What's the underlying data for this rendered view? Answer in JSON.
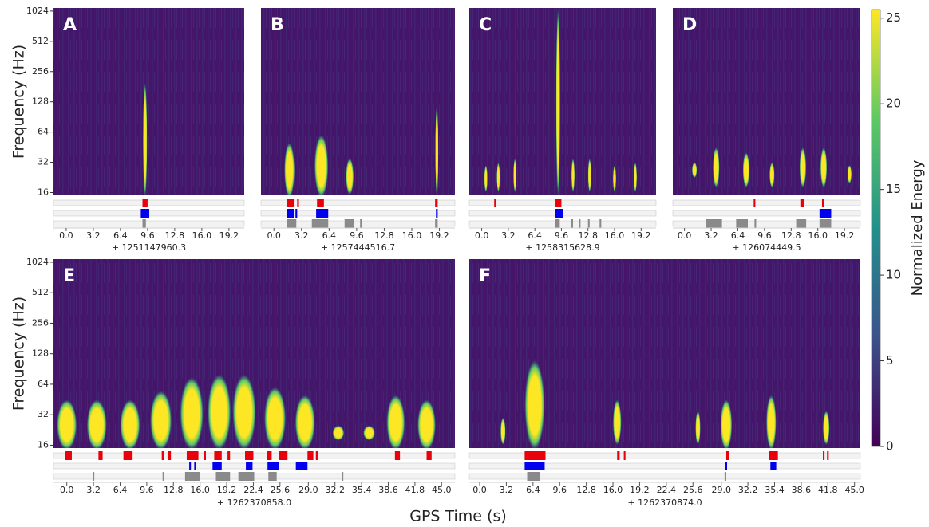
{
  "figure": {
    "xlabel": "GPS Time (s)",
    "colorbar": {
      "label": "Normalized Energy",
      "lim": [
        0,
        25.5
      ],
      "ticks": [
        0,
        5,
        10,
        15,
        20,
        25
      ]
    }
  },
  "chart_data": [
    {
      "type": "spectrogram",
      "letter": "A",
      "ylabel": "Frequency (Hz)",
      "offset": "+ 1251147960.3",
      "log_y": true,
      "xlim": [
        -1.5,
        21
      ],
      "ylim": [
        15,
        1100
      ],
      "xticks": [
        {
          "value": 0,
          "label": "0.0"
        },
        3.2,
        6.4,
        9.6,
        12.8,
        {
          "value": 16,
          "label": "16.0"
        },
        19.2
      ],
      "yticks": [
        16,
        32,
        64,
        128,
        256,
        512,
        1024
      ],
      "flag_colors": {
        "red": "#e8000b",
        "blue": "#0000ee",
        "gray": "#8a8a8a"
      },
      "events": [
        {
          "time": 9.3,
          "freq_low": 16,
          "freq_high": 200,
          "width": 0.5
        }
      ],
      "flags": {
        "red": [
          [
            9.0,
            9.6
          ]
        ],
        "blue": [
          [
            8.8,
            9.8
          ]
        ],
        "gray": [
          [
            9.0,
            9.4
          ]
        ]
      }
    },
    {
      "type": "spectrogram",
      "letter": "B",
      "offset": "+ 1257444516.7",
      "log_y": true,
      "xlim": [
        -1.5,
        21
      ],
      "ylim": [
        15,
        1100
      ],
      "xticks": [
        {
          "value": 0,
          "label": "0.0"
        },
        3.2,
        6.4,
        9.6,
        12.8,
        {
          "value": 16,
          "label": "16.0"
        },
        19.2
      ],
      "flag_colors": {
        "red": "#e8000b",
        "blue": "#0000ee",
        "gray": "#8a8a8a"
      },
      "events": [
        {
          "time": 1.8,
          "freq_low": 16,
          "freq_high": 50,
          "width": 1.2
        },
        {
          "time": 5.5,
          "freq_low": 16,
          "freq_high": 60,
          "width": 1.6
        },
        {
          "time": 8.8,
          "freq_low": 17,
          "freq_high": 35,
          "width": 0.9
        },
        {
          "time": 18.9,
          "freq_low": 16,
          "freq_high": 120,
          "width": 0.3
        }
      ],
      "flags": {
        "red": [
          [
            1.5,
            2.3
          ],
          [
            2.7,
            2.9
          ],
          [
            5.0,
            5.8
          ],
          [
            18.7,
            19.0
          ]
        ],
        "blue": [
          [
            1.5,
            2.3
          ],
          [
            2.5,
            2.7
          ],
          [
            4.9,
            6.3
          ],
          [
            18.8,
            19.0
          ]
        ],
        "gray": [
          [
            1.5,
            2.6
          ],
          [
            4.4,
            6.3
          ],
          [
            8.2,
            9.3
          ],
          [
            10.0,
            10.2
          ],
          [
            18.7,
            19.0
          ]
        ]
      }
    },
    {
      "type": "spectrogram",
      "letter": "C",
      "offset": "+ 1258315628.9",
      "log_y": true,
      "xlim": [
        -1.5,
        21
      ],
      "ylim": [
        15,
        1100
      ],
      "xticks": [
        {
          "value": 0,
          "label": "0.0"
        },
        3.2,
        6.4,
        9.6,
        12.8,
        {
          "value": 16,
          "label": "16.0"
        },
        19.2
      ],
      "flag_colors": {
        "red": "#e8000b",
        "blue": "#0000ee",
        "gray": "#8a8a8a"
      },
      "events": [
        {
          "time": 9.2,
          "freq_low": 16,
          "freq_high": 1100,
          "width": 0.5
        },
        {
          "time": 0.5,
          "freq_low": 18,
          "freq_high": 30,
          "width": 0.3
        },
        {
          "time": 2,
          "freq_low": 18,
          "freq_high": 32,
          "width": 0.3
        },
        {
          "time": 4,
          "freq_low": 18,
          "freq_high": 35,
          "width": 0.3
        },
        {
          "time": 11,
          "freq_low": 18,
          "freq_high": 35,
          "width": 0.3
        },
        {
          "time": 13,
          "freq_low": 18,
          "freq_high": 35,
          "width": 0.3
        },
        {
          "time": 16,
          "freq_low": 18,
          "freq_high": 30,
          "width": 0.3
        },
        {
          "time": 18.5,
          "freq_low": 18,
          "freq_high": 32,
          "width": 0.3
        }
      ],
      "flags": {
        "red": [
          [
            1.5,
            1.7
          ],
          [
            8.8,
            9.6
          ]
        ],
        "blue": [
          [
            8.8,
            9.8
          ]
        ],
        "gray": [
          [
            8.8,
            9.4
          ],
          [
            10.8,
            11.0
          ],
          [
            11.7,
            11.9
          ],
          [
            12.8,
            13.0
          ],
          [
            14.2,
            14.4
          ]
        ]
      }
    },
    {
      "type": "spectrogram",
      "letter": "D",
      "offset": "+ 126074449.5",
      "log_y": true,
      "xlim": [
        -1.4,
        21.1
      ],
      "ylim": [
        15,
        1100
      ],
      "xticks": [
        {
          "value": 0,
          "label": "0.0"
        },
        3.2,
        6.4,
        9.6,
        12.8,
        {
          "value": 16,
          "label": "16.0"
        },
        19.2
      ],
      "flag_colors": {
        "red": "#e8000b",
        "blue": "#0000ee",
        "gray": "#8a8a8a"
      },
      "events": [
        {
          "time": 1.2,
          "freq_low": 25,
          "freq_high": 32,
          "width": 0.6
        },
        {
          "time": 3.8,
          "freq_low": 20,
          "freq_high": 45,
          "width": 0.8
        },
        {
          "time": 7.4,
          "freq_low": 20,
          "freq_high": 40,
          "width": 0.8
        },
        {
          "time": 10.5,
          "freq_low": 20,
          "freq_high": 32,
          "width": 0.6
        },
        {
          "time": 14.2,
          "freq_low": 20,
          "freq_high": 45,
          "width": 0.8
        },
        {
          "time": 16.7,
          "freq_low": 20,
          "freq_high": 45,
          "width": 0.8
        },
        {
          "time": 19.8,
          "freq_low": 22,
          "freq_high": 30,
          "width": 0.5
        }
      ],
      "flags": {
        "red": [
          [
            8.3,
            8.5
          ],
          [
            13.9,
            14.4
          ],
          [
            16.5,
            16.7
          ]
        ],
        "blue": [
          [
            16.2,
            17.6
          ]
        ],
        "gray": [
          [
            2.6,
            4.5
          ],
          [
            6.2,
            7.6
          ],
          [
            8.4,
            8.6
          ],
          [
            13.4,
            14.6
          ],
          [
            16.2,
            17.6
          ]
        ]
      }
    },
    {
      "type": "spectrogram",
      "letter": "E",
      "ylabel": "Frequency (Hz)",
      "offset": "+ 1262370858.0",
      "log_y": true,
      "xlim": [
        -1.6,
        46.6
      ],
      "ylim": [
        15,
        1100
      ],
      "xticks": [
        {
          "value": 0,
          "label": "0.0"
        },
        3.2,
        6.4,
        9.6,
        12.8,
        {
          "value": 16,
          "label": "16.0"
        },
        19.2,
        22.4,
        25.6,
        {
          "value": 29,
          "label": "29.0"
        },
        32.2,
        35.4,
        38.6,
        41.8,
        {
          "value": 45,
          "label": "45.0"
        }
      ],
      "yticks": [
        16,
        32,
        64,
        128,
        256,
        512,
        1024
      ],
      "flag_colors": {
        "red": "#e8000b",
        "blue": "#0000ee",
        "gray": "#8a8a8a"
      },
      "events": [
        {
          "time": 0,
          "freq_low": 16,
          "freq_high": 45,
          "width": 2.4
        },
        {
          "time": 3.6,
          "freq_low": 16,
          "freq_high": 45,
          "width": 2.4
        },
        {
          "time": 7.6,
          "freq_low": 16,
          "freq_high": 45,
          "width": 2.4
        },
        {
          "time": 11.3,
          "freq_low": 16,
          "freq_high": 55,
          "width": 2.6
        },
        {
          "time": 15,
          "freq_low": 16,
          "freq_high": 75,
          "width": 2.8
        },
        {
          "time": 18.3,
          "freq_low": 16,
          "freq_high": 80,
          "width": 2.8
        },
        {
          "time": 21.3,
          "freq_low": 16,
          "freq_high": 80,
          "width": 2.8
        },
        {
          "time": 25,
          "freq_low": 16,
          "freq_high": 60,
          "width": 2.6
        },
        {
          "time": 28.6,
          "freq_low": 16,
          "freq_high": 50,
          "width": 2.4
        },
        {
          "time": 32.6,
          "freq_low": 20,
          "freq_high": 25,
          "width": 1.4
        },
        {
          "time": 36.3,
          "freq_low": 20,
          "freq_high": 25,
          "width": 1.4
        },
        {
          "time": 39.5,
          "freq_low": 16,
          "freq_high": 50,
          "width": 2.2
        },
        {
          "time": 43.2,
          "freq_low": 16,
          "freq_high": 45,
          "width": 2.2
        }
      ],
      "flags": {
        "red": [
          [
            -0.2,
            0.6
          ],
          [
            3.8,
            4.3
          ],
          [
            6.8,
            7.9
          ],
          [
            11.4,
            11.7
          ],
          [
            12.1,
            12.5
          ],
          [
            14.4,
            15.8
          ],
          [
            16.5,
            16.7
          ],
          [
            17.7,
            18.6
          ],
          [
            19.3,
            19.6
          ],
          [
            21.4,
            22.4
          ],
          [
            24.0,
            24.6
          ],
          [
            25.5,
            26.5
          ],
          [
            28.9,
            29.6
          ],
          [
            29.9,
            30.2
          ],
          [
            39.4,
            40.0
          ],
          [
            43.2,
            43.8
          ]
        ],
        "blue": [
          [
            14.7,
            14.9
          ],
          [
            15.3,
            15.5
          ],
          [
            17.5,
            18.6
          ],
          [
            21.5,
            22.3
          ],
          [
            24.1,
            25.5
          ],
          [
            27.5,
            28.9
          ]
        ],
        "gray": [
          [
            3.1,
            3.3
          ],
          [
            11.5,
            11.7
          ],
          [
            14.2,
            14.5
          ],
          [
            14.6,
            16.0
          ],
          [
            17.9,
            19.6
          ],
          [
            20.6,
            22.5
          ],
          [
            24.2,
            25.2
          ],
          [
            33.0,
            33.2
          ]
        ]
      }
    },
    {
      "type": "spectrogram",
      "letter": "F",
      "offset": "+ 1262370874.0",
      "log_y": true,
      "xlim": [
        -1.25,
        45.7
      ],
      "ylim": [
        15,
        1100
      ],
      "xticks": [
        {
          "value": 0,
          "label": "0.0"
        },
        3.2,
        6.4,
        9.6,
        12.8,
        {
          "value": 16,
          "label": "16.0"
        },
        19.2,
        22.4,
        25.6,
        {
          "value": 29,
          "label": "29.0"
        },
        32.2,
        35.4,
        38.6,
        41.8,
        {
          "value": 45,
          "label": "45.0"
        }
      ],
      "flag_colors": {
        "red": "#e8000b",
        "blue": "#0000ee",
        "gray": "#8a8a8a"
      },
      "events": [
        {
          "time": 6.6,
          "freq_low": 16,
          "freq_high": 110,
          "width": 2.4
        },
        {
          "time": 2.8,
          "freq_low": 18,
          "freq_high": 30,
          "width": 0.6
        },
        {
          "time": 16.5,
          "freq_low": 18,
          "freq_high": 45,
          "width": 1.0
        },
        {
          "time": 26.2,
          "freq_low": 18,
          "freq_high": 35,
          "width": 0.6
        },
        {
          "time": 29.6,
          "freq_low": 16,
          "freq_high": 45,
          "width": 1.4
        },
        {
          "time": 35,
          "freq_low": 16,
          "freq_high": 50,
          "width": 1.2
        },
        {
          "time": 41.6,
          "freq_low": 18,
          "freq_high": 35,
          "width": 0.8
        }
      ],
      "flags": {
        "red": [
          [
            5.4,
            7.9
          ],
          [
            16.5,
            16.8
          ],
          [
            17.3,
            17.5
          ],
          [
            29.6,
            29.9
          ],
          [
            34.7,
            35.8
          ],
          [
            41.2,
            41.4
          ],
          [
            41.7,
            41.9
          ]
        ],
        "blue": [
          [
            5.4,
            7.8
          ],
          [
            29.5,
            29.7
          ],
          [
            34.9,
            35.6
          ]
        ],
        "gray": [
          [
            5.7,
            7.2
          ],
          [
            29.4,
            29.6
          ]
        ]
      }
    }
  ]
}
